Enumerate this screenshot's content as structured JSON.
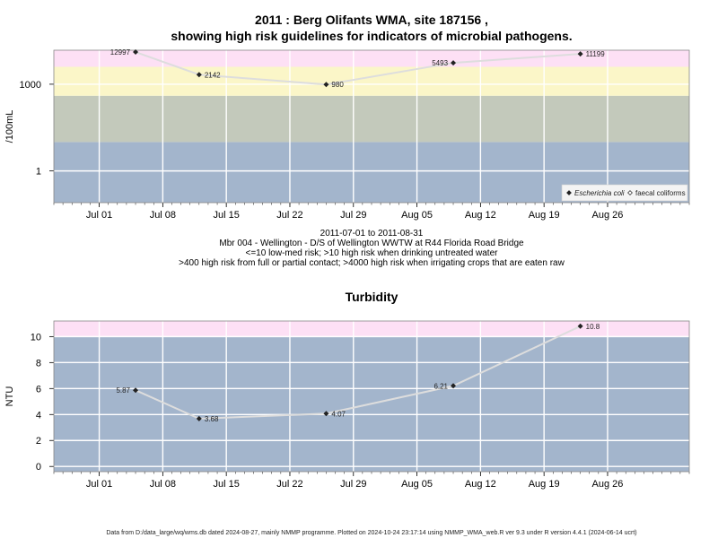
{
  "page": {
    "title_line1": "2011 : Berg Olifants WMA, site 187156 ,",
    "title_line2": "showing high risk guidelines for indicators of microbial pathogens.",
    "caption": [
      "2011-07-01 to 2011-08-31",
      "Mbr 004 - Wellington - D/S of Wellington WWTW at R44 Florida Road Bridge",
      "<=10 low-med risk; >10 high risk when drinking untreated water",
      ">400 high risk from full or partial contact; >4000 high risk when irrigating crops that are eaten raw"
    ],
    "footer": "Data from D:/data_large/wq/wms.db dated 2024-08-27, mainly NMMP programme. Plotted on 2024-10-24 23:17:14 using NMMP_WMA_web.R ver 9.3 under R version 4.4.1 (2024-06-14 ucrt)"
  },
  "colors": {
    "band_blue": "#a3b5cc",
    "band_green": "#c3c9bb",
    "band_yellow": "#fbf6c8",
    "band_pink": "#fde0f5",
    "grid": "#ffffff",
    "line": "#dddddd",
    "marker": "#222222"
  },
  "chart_data": [
    {
      "type": "line",
      "title": "",
      "ylabel": "/100mL",
      "yscale": "log10",
      "ylim": [
        0.08,
        15000
      ],
      "xlim": [
        "2011-06-26",
        "2011-09-04"
      ],
      "x_ticks": [
        "Jul 01",
        "Jul 08",
        "Jul 15",
        "Jul 22",
        "Jul 29",
        "Aug 05",
        "Aug 12",
        "Aug 19",
        "Aug 26"
      ],
      "x_tick_dates": [
        "2011-07-01",
        "2011-07-08",
        "2011-07-15",
        "2011-07-22",
        "2011-07-29",
        "2011-08-05",
        "2011-08-12",
        "2011-08-19",
        "2011-08-26"
      ],
      "y_ticks": [
        1,
        1000
      ],
      "y_tick_labels": [
        "1",
        "1000"
      ],
      "bands": [
        {
          "from": 0.08,
          "to": 10,
          "color": "band_blue"
        },
        {
          "from": 10,
          "to": 400,
          "color": "band_green"
        },
        {
          "from": 400,
          "to": 4000,
          "color": "band_yellow"
        },
        {
          "from": 4000,
          "to": 15000,
          "color": "band_pink"
        }
      ],
      "legend": {
        "placement": "bottom-right",
        "entries": [
          {
            "label": "Escherichia coli",
            "marker": "filled-diamond",
            "italic": true
          },
          {
            "label": "faecal coliforms",
            "marker": "open-diamond",
            "italic": false
          }
        ]
      },
      "series": [
        {
          "name": "Escherichia coli",
          "x": [
            "2011-07-05",
            "2011-07-12",
            "2011-07-26",
            "2011-08-09",
            "2011-08-23"
          ],
          "y": [
            12997,
            2142,
            980,
            5493,
            11199
          ],
          "labels": [
            "12997",
            "2142",
            "980",
            "5493",
            "11199"
          ],
          "label_side": [
            "left",
            "right",
            "right",
            "left",
            "right"
          ]
        }
      ]
    },
    {
      "type": "line",
      "title": "Turbidity",
      "ylabel": "NTU",
      "yscale": "linear",
      "ylim": [
        -0.4,
        11.2
      ],
      "xlim": [
        "2011-06-26",
        "2011-09-04"
      ],
      "x_ticks": [
        "Jul 01",
        "Jul 08",
        "Jul 15",
        "Jul 22",
        "Jul 29",
        "Aug 05",
        "Aug 12",
        "Aug 19",
        "Aug 26"
      ],
      "x_tick_dates": [
        "2011-07-01",
        "2011-07-08",
        "2011-07-15",
        "2011-07-22",
        "2011-07-29",
        "2011-08-05",
        "2011-08-12",
        "2011-08-19",
        "2011-08-26"
      ],
      "y_ticks": [
        0,
        2,
        4,
        6,
        8,
        10
      ],
      "y_tick_labels": [
        "0",
        "2",
        "4",
        "6",
        "8",
        "10"
      ],
      "bands": [
        {
          "from": -0.4,
          "to": 10,
          "color": "band_blue"
        },
        {
          "from": 10,
          "to": 11.2,
          "color": "band_pink"
        }
      ],
      "series": [
        {
          "x": [
            "2011-07-05",
            "2011-07-12",
            "2011-07-26",
            "2011-08-09",
            "2011-08-23"
          ],
          "y": [
            5.87,
            3.68,
            4.07,
            6.21,
            10.8
          ],
          "labels": [
            "5.87",
            "3.68",
            "4.07",
            "6.21",
            "10.8"
          ],
          "label_side": [
            "left",
            "right",
            "right",
            "left",
            "right"
          ]
        }
      ]
    }
  ]
}
